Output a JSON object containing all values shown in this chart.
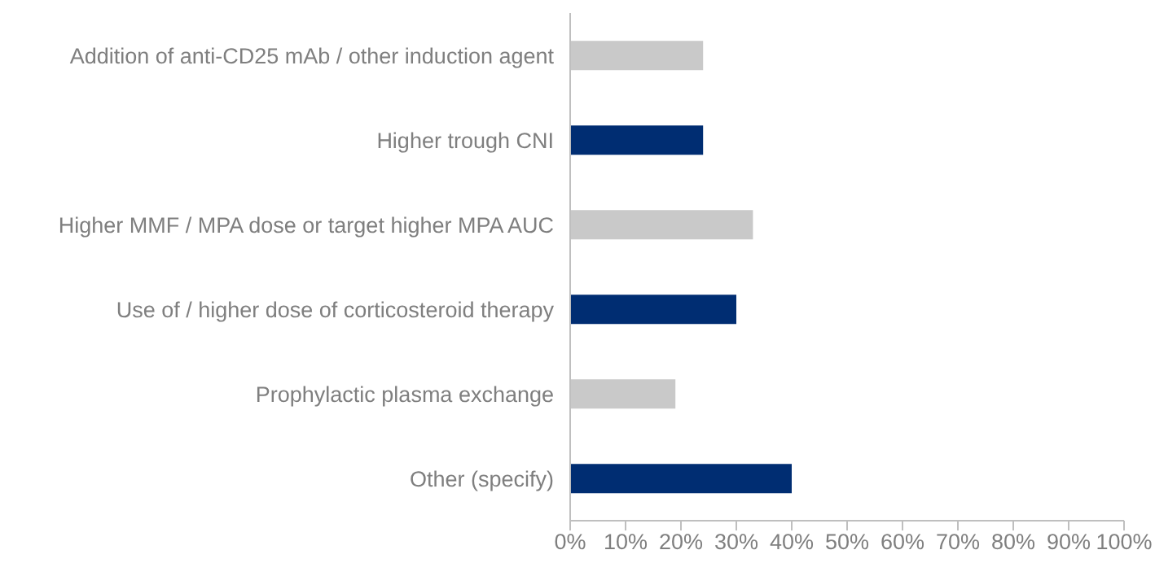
{
  "chart_data": {
    "type": "bar",
    "orientation": "horizontal",
    "categories": [
      "Addition of anti-CD25 mAb / other induction agent",
      "Higher trough CNI",
      "Higher MMF / MPA dose or target higher MPA AUC",
      "Use of / higher dose of corticosteroid therapy",
      "Prophylactic plasma exchange",
      "Other (specify)"
    ],
    "values": [
      24,
      24,
      33,
      30,
      19,
      40
    ],
    "colors": [
      "#c9c9c9",
      "#002d72",
      "#c9c9c9",
      "#002d72",
      "#c9c9c9",
      "#002d72"
    ],
    "xlim": [
      0,
      100
    ],
    "xticks": [
      {
        "value": 0,
        "label": "0%"
      },
      {
        "value": 10,
        "label": "10%"
      },
      {
        "value": 20,
        "label": "20%"
      },
      {
        "value": 30,
        "label": "30%"
      },
      {
        "value": 40,
        "label": "40%"
      },
      {
        "value": 50,
        "label": "50%"
      },
      {
        "value": 60,
        "label": "60%"
      },
      {
        "value": 70,
        "label": "70%"
      },
      {
        "value": 80,
        "label": "80%"
      },
      {
        "value": 90,
        "label": "90%"
      },
      {
        "value": 100,
        "label": "100%"
      }
    ],
    "grid": false,
    "legend": false
  }
}
